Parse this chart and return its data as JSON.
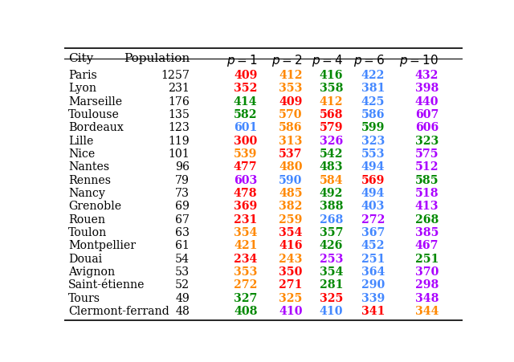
{
  "cities": [
    "Paris",
    "Lyon",
    "Marseille",
    "Toulouse",
    "Bordeaux",
    "Lille",
    "Nice",
    "Nantes",
    "Rennes",
    "Nancy",
    "Grenoble",
    "Rouen",
    "Toulon",
    "Montpellier",
    "Douai",
    "Avignon",
    "Saint-étienne",
    "Tours",
    "Clermont-ferrand"
  ],
  "population": [
    1257,
    231,
    176,
    135,
    123,
    119,
    101,
    96,
    79,
    73,
    69,
    67,
    63,
    61,
    54,
    53,
    52,
    49,
    48
  ],
  "p1": [
    409,
    352,
    414,
    582,
    601,
    300,
    539,
    477,
    603,
    478,
    369,
    231,
    354,
    421,
    234,
    353,
    272,
    327,
    408
  ],
  "p2": [
    412,
    353,
    409,
    570,
    586,
    313,
    537,
    480,
    590,
    485,
    382,
    259,
    354,
    416,
    243,
    350,
    271,
    325,
    410
  ],
  "p4": [
    416,
    358,
    412,
    568,
    579,
    326,
    542,
    483,
    584,
    492,
    388,
    268,
    357,
    426,
    253,
    354,
    281,
    325,
    410
  ],
  "p6": [
    422,
    381,
    425,
    586,
    599,
    323,
    553,
    494,
    569,
    494,
    403,
    272,
    367,
    452,
    251,
    364,
    290,
    339,
    341
  ],
  "p10": [
    432,
    398,
    440,
    607,
    606,
    323,
    575,
    512,
    585,
    518,
    413,
    268,
    385,
    467,
    251,
    370,
    298,
    348,
    344
  ],
  "colors_p1": [
    "red",
    "red",
    "green",
    "green",
    "blue",
    "red",
    "orange",
    "red",
    "purple",
    "red",
    "red",
    "red",
    "orange",
    "orange",
    "red",
    "orange",
    "orange",
    "green",
    "green"
  ],
  "colors_p2": [
    "orange",
    "orange",
    "red",
    "orange",
    "orange",
    "orange",
    "red",
    "orange",
    "blue",
    "orange",
    "orange",
    "orange",
    "red",
    "red",
    "orange",
    "red",
    "red",
    "orange",
    "purple"
  ],
  "colors_p4": [
    "green",
    "green",
    "orange",
    "red",
    "red",
    "purple",
    "green",
    "green",
    "orange",
    "green",
    "green",
    "blue",
    "green",
    "green",
    "purple",
    "green",
    "green",
    "red",
    "blue"
  ],
  "colors_p6": [
    "blue",
    "blue",
    "blue",
    "blue",
    "green",
    "blue",
    "blue",
    "blue",
    "red",
    "blue",
    "blue",
    "purple",
    "blue",
    "blue",
    "blue",
    "blue",
    "blue",
    "blue",
    "red"
  ],
  "colors_p10": [
    "purple",
    "purple",
    "purple",
    "purple",
    "purple",
    "green",
    "purple",
    "purple",
    "green",
    "purple",
    "purple",
    "green",
    "purple",
    "purple",
    "green",
    "purple",
    "purple",
    "purple",
    "orange"
  ],
  "col_colors": {
    "red": "#ff0000",
    "orange": "#ff8800",
    "green": "#008800",
    "blue": "#4488ff",
    "purple": "#aa00ff"
  }
}
